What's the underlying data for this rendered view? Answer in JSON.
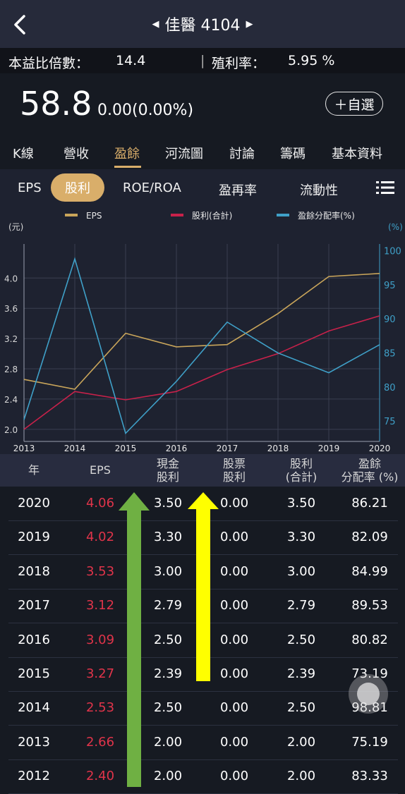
{
  "header": {
    "title": "佳醫 4104"
  },
  "stats": {
    "pe_label": "本益比倍數：",
    "pe_value": "14.4",
    "separator": "|",
    "yield_label": "殖利率：",
    "yield_value": "5.95 %"
  },
  "quote": {
    "price": "58.8",
    "change": "0.00(0.00%)",
    "watch_label": "＋自選"
  },
  "tabs": [
    "K線",
    "營收",
    "盈餘",
    "河流圖",
    "討論",
    "籌碼",
    "基本資料"
  ],
  "active_tab": "盈餘",
  "subtabs": [
    "EPS",
    "股利",
    "ROE/ROA",
    "盈再率",
    "流動性"
  ],
  "active_subtab": "股利",
  "chart_data": {
    "type": "line",
    "x": [
      "2013",
      "2014",
      "2015",
      "2016",
      "2017",
      "2018",
      "2019",
      "2020"
    ],
    "left_unit": "(元)",
    "right_unit": "(%)",
    "y_left_ticks": [
      "2.0",
      "2.4",
      "2.8",
      "3.2",
      "3.6",
      "4.0"
    ],
    "y_right_ticks": [
      "75",
      "80",
      "85",
      "90",
      "95",
      "100"
    ],
    "ylim_left": [
      1.84,
      4.45
    ],
    "ylim_right": [
      72,
      101
    ],
    "series": [
      {
        "name": "EPS",
        "axis": "left",
        "color": "#c9a55a",
        "values": [
          2.66,
          2.53,
          3.27,
          3.09,
          3.12,
          3.53,
          4.02,
          4.06
        ]
      },
      {
        "name": "股利(合計)",
        "axis": "left",
        "color": "#c8214a",
        "values": [
          2.0,
          2.5,
          2.39,
          2.5,
          2.79,
          3.0,
          3.3,
          3.5
        ]
      },
      {
        "name": "盈餘分配率(%)",
        "axis": "right",
        "color": "#3fa0c8",
        "values": [
          75.19,
          98.81,
          73.19,
          80.82,
          89.53,
          84.99,
          82.09,
          86.21
        ]
      }
    ],
    "grid": true,
    "legend": "top"
  },
  "table": {
    "headers": [
      "年",
      "EPS",
      "現金\n股利",
      "股票\n股利",
      "股利\n(合計)",
      "盈餘\n分配率 (%)"
    ],
    "rows": [
      [
        "2020",
        "4.06",
        "3.50",
        "0.00",
        "3.50",
        "86.21"
      ],
      [
        "2019",
        "4.02",
        "3.30",
        "0.00",
        "3.30",
        "82.09"
      ],
      [
        "2018",
        "3.53",
        "3.00",
        "0.00",
        "3.00",
        "84.99"
      ],
      [
        "2017",
        "3.12",
        "2.79",
        "0.00",
        "2.79",
        "89.53"
      ],
      [
        "2016",
        "3.09",
        "2.50",
        "0.00",
        "2.50",
        "80.82"
      ],
      [
        "2015",
        "3.27",
        "2.39",
        "0.00",
        "2.39",
        "73.19"
      ],
      [
        "2014",
        "2.53",
        "2.50",
        "0.00",
        "2.50",
        "98.81"
      ],
      [
        "2013",
        "2.66",
        "2.00",
        "0.00",
        "2.00",
        "75.19"
      ],
      [
        "2012",
        "2.40",
        "2.00",
        "0.00",
        "2.00",
        "83.33"
      ]
    ]
  },
  "colors": {
    "accent": "#d9ae6a",
    "eps_red": "#e0344a",
    "green_arrow": "#6fb043",
    "yellow_arrow": "#ffff00"
  }
}
